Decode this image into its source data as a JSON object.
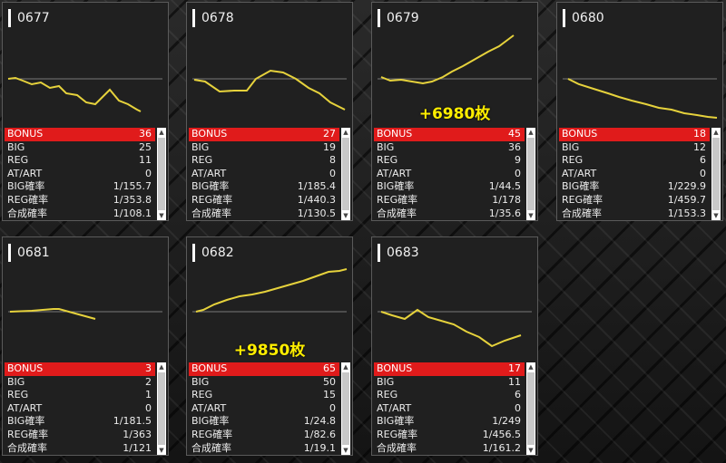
{
  "labels": [
    "BONUS",
    "BIG",
    "REG",
    "AT/ART",
    "BIG確率",
    "REG確率",
    "合成確率"
  ],
  "cards": [
    {
      "id": "0677",
      "values": [
        "36",
        "25",
        "11",
        "0",
        "1/155.7",
        "1/353.8",
        "1/108.1"
      ],
      "overlay": ""
    },
    {
      "id": "0678",
      "values": [
        "27",
        "19",
        "8",
        "0",
        "1/185.4",
        "1/440.3",
        "1/130.5"
      ],
      "overlay": ""
    },
    {
      "id": "0679",
      "values": [
        "45",
        "36",
        "9",
        "0",
        "1/44.5",
        "1/178",
        "1/35.6"
      ],
      "overlay": "+6980枚"
    },
    {
      "id": "0680",
      "values": [
        "18",
        "12",
        "6",
        "0",
        "1/229.9",
        "1/459.7",
        "1/153.3"
      ],
      "overlay": ""
    },
    {
      "id": "0681",
      "values": [
        "3",
        "2",
        "1",
        "0",
        "1/181.5",
        "1/363",
        "1/121"
      ],
      "overlay": ""
    },
    {
      "id": "0682",
      "values": [
        "65",
        "50",
        "15",
        "0",
        "1/24.8",
        "1/82.6",
        "1/19.1"
      ],
      "overlay": "+9850枚"
    },
    {
      "id": "0683",
      "values": [
        "17",
        "11",
        "6",
        "0",
        "1/249",
        "1/456.5",
        "1/161.2"
      ],
      "overlay": ""
    }
  ],
  "colors": {
    "line": "#e6d23c",
    "bonus_row": "#e01b1b",
    "overlay": "#ffee00"
  }
}
